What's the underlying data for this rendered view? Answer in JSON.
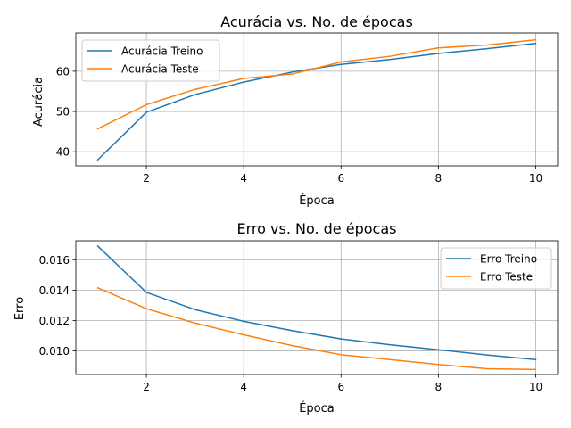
{
  "chart_data": [
    {
      "type": "line",
      "title": "Acurácia vs. No. de épocas",
      "xlabel": "Época",
      "ylabel": "Acurácia",
      "xlim": [
        0.55,
        10.45
      ],
      "ylim": [
        36.5,
        69.5
      ],
      "xticks": [
        2,
        4,
        6,
        8,
        10
      ],
      "yticks": [
        40,
        50,
        60
      ],
      "grid": true,
      "legend": "top-left",
      "x": [
        1,
        2,
        3,
        4,
        5,
        6,
        7,
        8,
        9,
        10
      ],
      "series": [
        {
          "name": "Acurácia Treino",
          "color": "#1f77b4",
          "values": [
            38.0,
            49.8,
            54.2,
            57.3,
            59.8,
            61.7,
            62.9,
            64.4,
            65.6,
            66.9
          ]
        },
        {
          "name": "Acurácia Teste",
          "color": "#ff7f0e",
          "values": [
            45.7,
            51.7,
            55.5,
            58.2,
            59.3,
            62.3,
            63.7,
            65.8,
            66.5,
            67.8
          ]
        }
      ]
    },
    {
      "type": "line",
      "title": "Erro vs. No. de épocas",
      "xlabel": "Época",
      "ylabel": "Erro",
      "xlim": [
        0.55,
        10.45
      ],
      "ylim": [
        0.00845,
        0.01725
      ],
      "xticks": [
        2,
        4,
        6,
        8,
        10
      ],
      "yticks": [
        0.01,
        0.012,
        0.014,
        0.016
      ],
      "ytick_labels": [
        "0.010",
        "0.012",
        "0.014",
        "0.016"
      ],
      "grid": true,
      "legend": "top-right",
      "x": [
        1,
        2,
        3,
        4,
        5,
        6,
        7,
        8,
        9,
        10
      ],
      "series": [
        {
          "name": "Erro Treino",
          "color": "#1f77b4",
          "values": [
            0.0169,
            0.01385,
            0.01272,
            0.01195,
            0.01133,
            0.01079,
            0.01041,
            0.01008,
            0.00973,
            0.00943
          ]
        },
        {
          "name": "Erro Teste",
          "color": "#ff7f0e",
          "values": [
            0.01415,
            0.01278,
            0.01183,
            0.01106,
            0.01035,
            0.00975,
            0.00943,
            0.00911,
            0.00883,
            0.00878
          ]
        }
      ]
    }
  ]
}
